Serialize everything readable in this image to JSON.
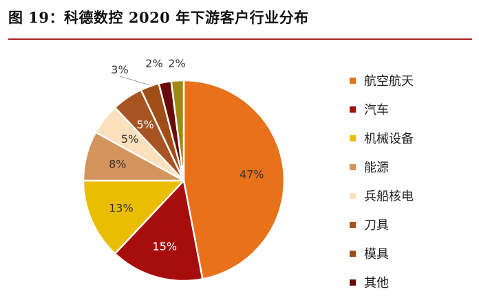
{
  "title": "图 19：科德数控 2020 年下游客户行业分布",
  "colors": {
    "title_rule": "#b01f24"
  },
  "chart_data": {
    "type": "pie",
    "title": "图 19：科德数控 2020 年下游客户行业分布",
    "legend_position": "right",
    "slices": [
      {
        "label": "航空航天",
        "value": 47,
        "display": "47%",
        "color": "#e8711a"
      },
      {
        "label": "汽车",
        "value": 15,
        "display": "15%",
        "color": "#a80d0d"
      },
      {
        "label": "机械设备",
        "value": 13,
        "display": "13%",
        "color": "#ebbd00"
      },
      {
        "label": "能源",
        "value": 8,
        "display": "8%",
        "color": "#d4955c"
      },
      {
        "label": "兵船核电",
        "value": 5,
        "display": "5%",
        "color": "#fbe0bd"
      },
      {
        "label": "刀具",
        "value": 5,
        "display": "5%",
        "color": "#a85422"
      },
      {
        "label": "模具",
        "value": 3,
        "display": "3%",
        "color": "#a04e18"
      },
      {
        "label": "其他",
        "value": 2,
        "display": "2%",
        "color": "#6a0a0a"
      },
      {
        "label": "",
        "value": 2,
        "display": "2%",
        "color": "#9e8a12"
      }
    ]
  }
}
